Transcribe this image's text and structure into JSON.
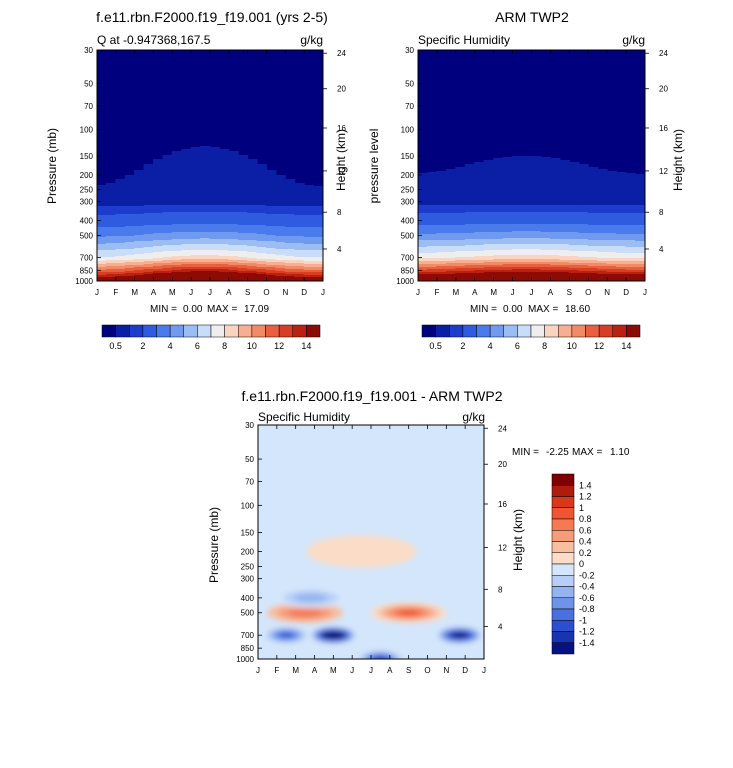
{
  "chart_data": [
    {
      "type": "heatmap",
      "title": "f.e11.rbn.F2000.f19_f19.001 (yrs 2-5)",
      "left_label": "Q at -0.947368,167.5",
      "right_label": "g/kg",
      "ylabel": "Pressure (mb)",
      "ylabel_right": "Height (km)",
      "x_ticks": [
        "J",
        "F",
        "M",
        "A",
        "M",
        "J",
        "J",
        "A",
        "S",
        "O",
        "N",
        "D",
        "J"
      ],
      "y_ticks": [
        "30",
        "50",
        "70",
        "100",
        "150",
        "200",
        "250",
        "300",
        "400",
        "500",
        "700",
        "850",
        "1000"
      ],
      "height_ticks": [
        "24",
        "20",
        "16",
        "12",
        "8",
        "4"
      ],
      "stats": {
        "label": "MIN =",
        "min": "0.00",
        "max_label": "MAX =",
        "max": "17.09"
      },
      "colorbar_labels": [
        "0.5",
        "2",
        "4",
        "6",
        "8",
        "10",
        "12",
        "14"
      ],
      "colors": [
        "#00007f",
        "#0a1fa5",
        "#1d3bcc",
        "#2e5be0",
        "#4a7bec",
        "#6f9af0",
        "#9cbdf4",
        "#c9dcf8",
        "#eeeeee",
        "#fbd3c1",
        "#f7ae91",
        "#f28a66",
        "#e8603f",
        "#d83e22",
        "#bb2010",
        "#8e0b05"
      ],
      "profile_q_gkg": {
        "levels_mb": [
          30,
          300,
          400,
          500,
          700,
          850,
          1000
        ],
        "values": [
          0.1,
          0.3,
          1.5,
          3.2,
          6.8,
          11.5,
          16.5
        ]
      }
    },
    {
      "type": "heatmap",
      "title": "ARM TWP2",
      "left_label": "Specific Humidity",
      "right_label": "g/kg",
      "ylabel": "pressure level",
      "ylabel_right": "Height (km)",
      "x_ticks": [
        "J",
        "F",
        "M",
        "A",
        "M",
        "J",
        "J",
        "A",
        "S",
        "O",
        "N",
        "D",
        "J"
      ],
      "y_ticks": [
        "30",
        "50",
        "70",
        "100",
        "150",
        "200",
        "250",
        "300",
        "400",
        "500",
        "700",
        "850",
        "1000"
      ],
      "height_ticks": [
        "24",
        "20",
        "16",
        "12",
        "8",
        "4"
      ],
      "stats": {
        "label": "MIN =",
        "min": "0.00",
        "max_label": "MAX =",
        "max": "18.60"
      },
      "colorbar_labels": [
        "0.5",
        "2",
        "4",
        "6",
        "8",
        "10",
        "12",
        "14"
      ],
      "profile_q_gkg": {
        "levels_mb": [
          30,
          300,
          400,
          500,
          700,
          850,
          1000
        ],
        "values": [
          0.1,
          0.3,
          1.6,
          3.4,
          7.2,
          12.0,
          17.2
        ]
      }
    },
    {
      "type": "heatmap",
      "title": "f.e11.rbn.F2000.f19_f19.001 - ARM TWP2",
      "left_label": "Specific Humidity",
      "right_label": "g/kg",
      "ylabel": "Pressure (mb)",
      "ylabel_right": "Height (km)",
      "x_ticks": [
        "J",
        "F",
        "M",
        "A",
        "M",
        "J",
        "J",
        "A",
        "S",
        "O",
        "N",
        "D",
        "J"
      ],
      "y_ticks": [
        "30",
        "50",
        "70",
        "100",
        "150",
        "200",
        "250",
        "300",
        "400",
        "500",
        "700",
        "850",
        "1000"
      ],
      "height_ticks": [
        "24",
        "20",
        "16",
        "12",
        "8",
        "4"
      ],
      "stats": {
        "label": "MIN =",
        "min": "-2.25",
        "max_label": "MAX =",
        "max": "1.10"
      },
      "colorbar_labels": [
        "1.4",
        "1.2",
        "1",
        "0.8",
        "0.6",
        "0.4",
        "0.2",
        "0",
        "-0.2",
        "-0.4",
        "-0.6",
        "-0.8",
        "-1",
        "-1.2",
        "-1.4"
      ],
      "colors": [
        "#7f0000",
        "#b01c0c",
        "#d8381c",
        "#ee5530",
        "#f47a52",
        "#f69c78",
        "#f8bea0",
        "#fbdcc6",
        "#d4e6fb",
        "#b7cff6",
        "#94b4f1",
        "#6f93ea",
        "#4a70e0",
        "#2c4fd0",
        "#1934b0",
        "#06127f"
      ],
      "anomaly_blobs": [
        {
          "month": 8.0,
          "p_mb": 500,
          "value": 0.9
        },
        {
          "month": 2.5,
          "p_mb": 500,
          "value": 0.7
        },
        {
          "month": 5.5,
          "p_mb": 200,
          "value": 0.1
        },
        {
          "month": 4.0,
          "p_mb": 700,
          "value": -2.2
        },
        {
          "month": 10.7,
          "p_mb": 700,
          "value": -1.8
        },
        {
          "month": 1.5,
          "p_mb": 700,
          "value": -1.2
        },
        {
          "month": 6.5,
          "p_mb": 1000,
          "value": -1.4
        },
        {
          "month": 2.8,
          "p_mb": 400,
          "value": -0.5
        }
      ]
    }
  ]
}
